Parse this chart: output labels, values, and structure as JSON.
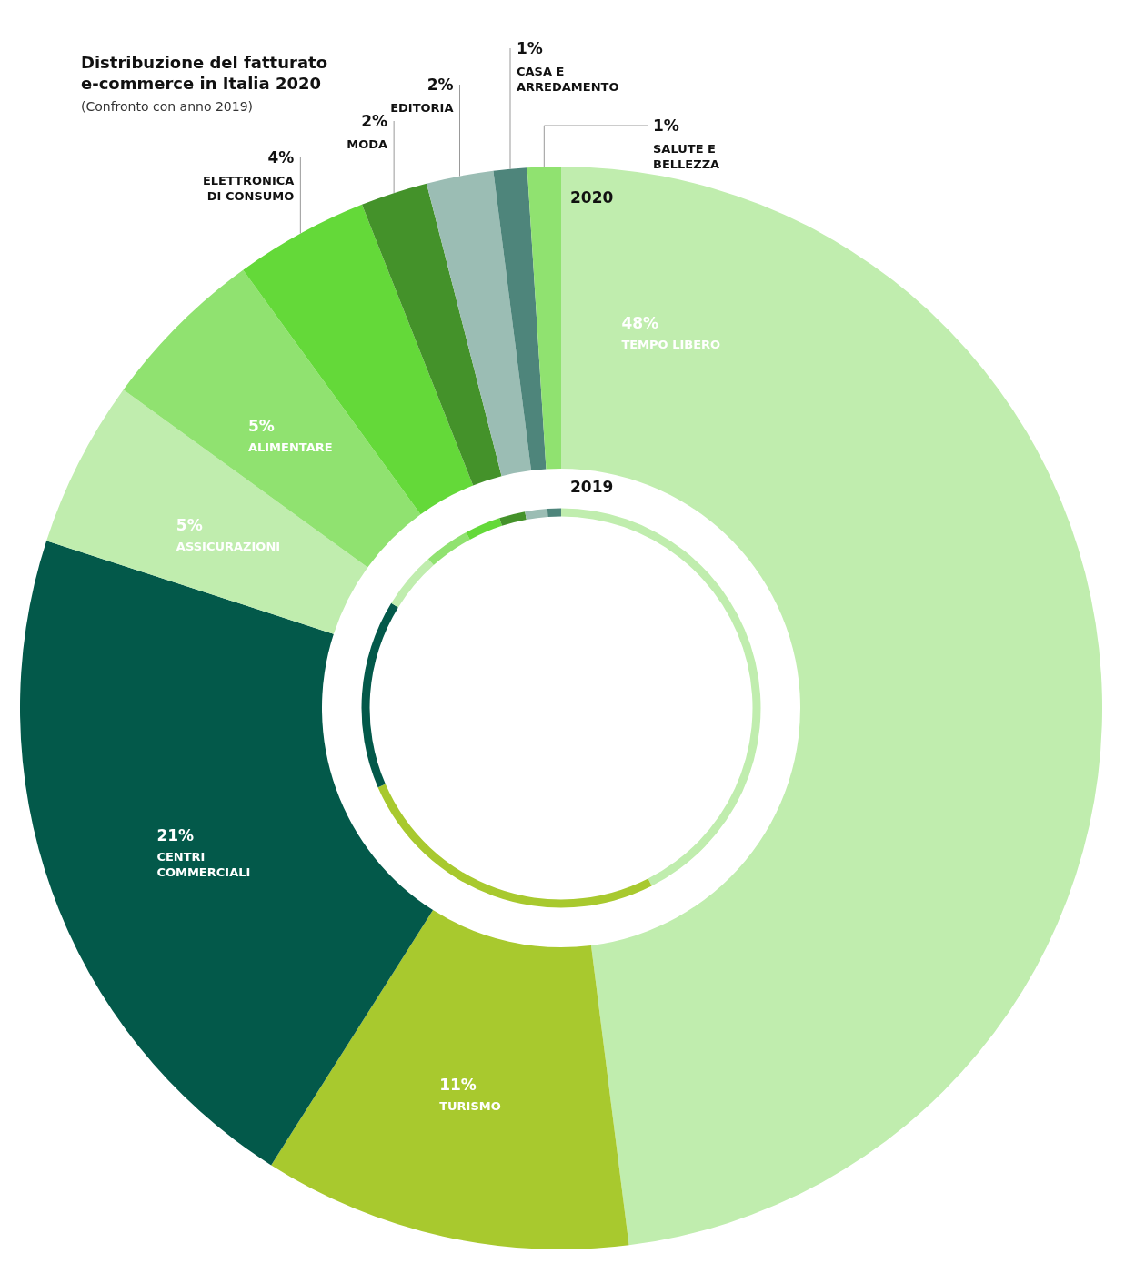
{
  "chart_data": {
    "type": "donut",
    "title": "Distribuzione del fatturato\ne-commerce in Italia 2020",
    "subtitle": "(Confronto con anno 2019)",
    "categories": [
      "TEMPO LIBERO",
      "TURISMO",
      "CENTRI COMMERCIALI",
      "ASSICURAZIONI",
      "ALIMENTARE",
      "ELETTRONICA DI CONSUMO",
      "MODA",
      "EDITORIA",
      "CASA E ARREDAMENTO",
      "SALUTE E BELLEZZA"
    ],
    "colors": [
      "#c0edae",
      "#a8c92e",
      "#03594a",
      "#c0edae",
      "#90e270",
      "#64d939",
      "#44922a",
      "#9bbdb4",
      "#4e857b",
      "#90e270"
    ],
    "series": [
      {
        "name": "2020",
        "values": [
          48,
          11,
          21,
          5,
          5,
          4,
          2,
          2,
          1,
          1
        ],
        "value_labels": [
          "48%",
          "11%",
          "21%",
          "5%",
          "5%",
          "4%",
          "2%",
          "2%",
          "1%",
          "1%"
        ]
      },
      {
        "name": "2019",
        "values": [
          42.5,
          26,
          15.3,
          4.6,
          3.7,
          2.9,
          2.1,
          1.8,
          1.1,
          0
        ]
      }
    ]
  }
}
